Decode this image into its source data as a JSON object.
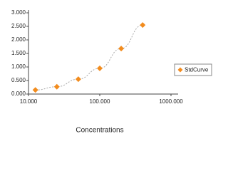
{
  "chart_data": {
    "type": "scatter",
    "x_label": "Concentrations",
    "x_log": true,
    "series": [
      {
        "name": "StdCurve",
        "color": "#f28c1e",
        "x": [
          12.5,
          25,
          50,
          100,
          200,
          400
        ],
        "values": [
          0.15,
          0.27,
          0.55,
          0.95,
          1.68,
          2.55
        ]
      }
    ],
    "xlim": [
      10,
      1000
    ],
    "xticks": [
      {
        "value": 10,
        "label": "10.000"
      },
      {
        "value": 100,
        "label": "100.000"
      },
      {
        "value": 1000,
        "label": "1000.000"
      }
    ],
    "ylim": [
      0,
      3
    ],
    "yticks": [
      {
        "value": 0,
        "label": "0.000"
      },
      {
        "value": 0.5,
        "label": "0.500"
      },
      {
        "value": 1,
        "label": "1.000"
      },
      {
        "value": 1.5,
        "label": "1.500"
      },
      {
        "value": 2,
        "label": "2.000"
      },
      {
        "value": 2.5,
        "label": "2.500"
      },
      {
        "value": 3,
        "label": "3.000"
      }
    ],
    "legend": "right"
  }
}
